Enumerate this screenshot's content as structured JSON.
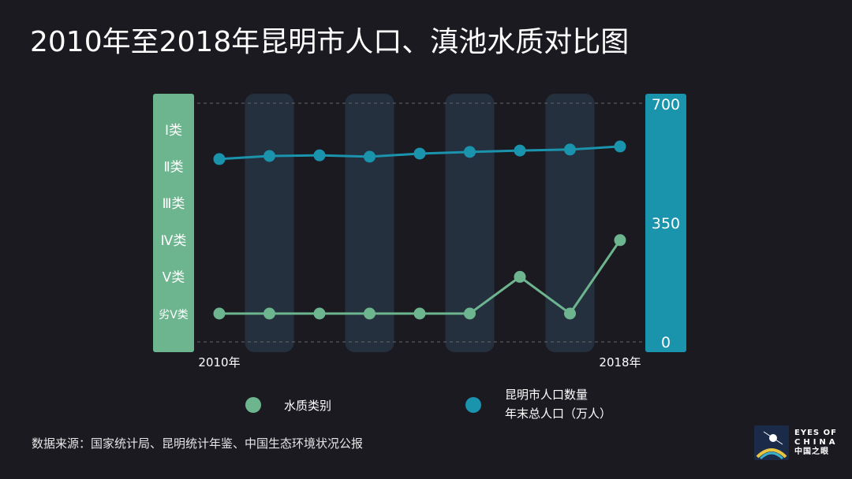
{
  "title": "2010年至2018年昆明市人口、滇池水质对比图",
  "source": "数据来源：国家统计局、昆明统计年鉴、中国生态环境状况公报",
  "logo": {
    "line1": "EYES OF",
    "line2": "CHINA",
    "line3": "中国之眼"
  },
  "colors": {
    "water": "#6db58f",
    "population": "#1a93ad",
    "band": "#25303f",
    "bg": "#1b1a21"
  },
  "chart_data": {
    "type": "line",
    "title": "2010年至2018年昆明市人口、滇池水质对比图",
    "x": [
      2010,
      2011,
      2012,
      2013,
      2014,
      2015,
      2016,
      2017,
      2018
    ],
    "x_tick_labels": [
      "2010年",
      "2018年"
    ],
    "left_axis": {
      "label_categories": [
        "Ⅰ类",
        "Ⅱ类",
        "Ⅲ类",
        "Ⅳ类",
        "Ⅴ类",
        "劣Ⅴ类"
      ]
    },
    "right_axis": {
      "ticks": [
        "700",
        "350",
        "0"
      ],
      "ylim": [
        0,
        700
      ]
    },
    "series": [
      {
        "name": "水质类别",
        "axis": "left",
        "values": [
          "劣Ⅴ类",
          "劣Ⅴ类",
          "劣Ⅴ类",
          "劣Ⅴ类",
          "劣Ⅴ类",
          "劣Ⅴ类",
          "Ⅴ类",
          "劣Ⅴ类",
          "Ⅳ类"
        ]
      },
      {
        "name": "昆明市人口数量",
        "name_line2": "年末总人口（万人）",
        "axis": "right",
        "values": [
          538,
          547,
          549,
          545,
          554,
          559,
          563,
          566,
          575
        ]
      }
    ],
    "legend": "bottom"
  }
}
